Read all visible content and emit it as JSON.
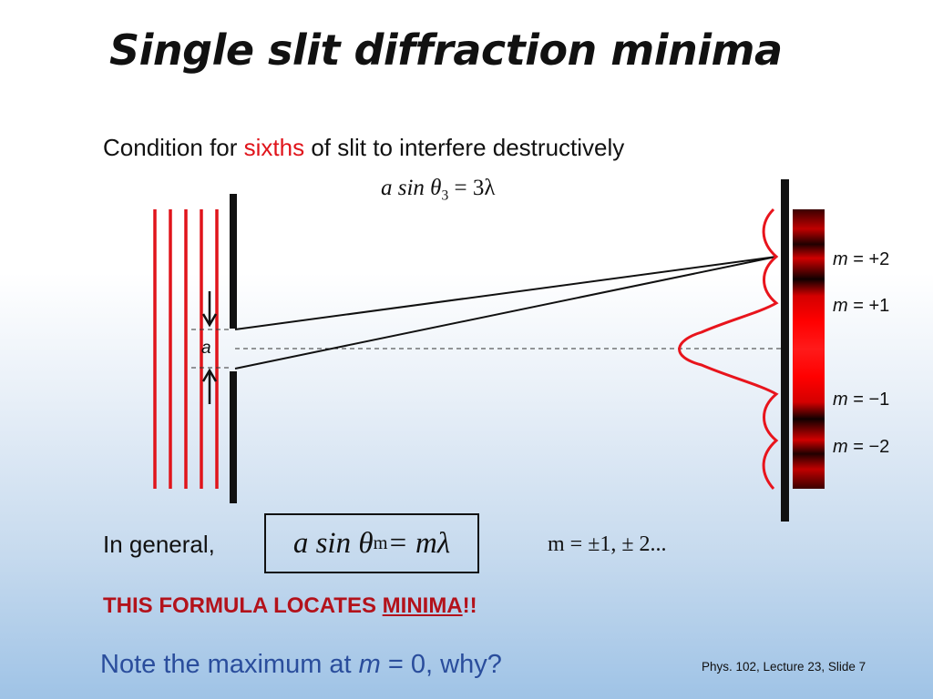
{
  "slide": {
    "title": "Single slit diffraction minima",
    "condition": {
      "prefix": "Condition for ",
      "highlight": "sixths",
      "suffix": " of slit to interfere destructively"
    },
    "formula_top": {
      "lhs": "a sin θ",
      "subscript": "3",
      "rhs": " = 3λ"
    },
    "diagram": {
      "slit_label": "a",
      "screen_labels": [
        {
          "var": "m",
          "text": " = +2"
        },
        {
          "var": "m",
          "text": " = +1"
        },
        {
          "var": "m",
          "text": " = −1"
        },
        {
          "var": "m",
          "text": " = −2"
        }
      ],
      "colors": {
        "wavefronts": "#e0141b",
        "intensity_curve": "#e8141c",
        "barrier": "#111111"
      }
    },
    "general": {
      "label": "In general,",
      "formula_lhs": "a sin θ",
      "formula_subscript": "m",
      "formula_rhs": " = mλ",
      "m_values": "m = ±1, ± 2..."
    },
    "locates": {
      "prefix": "THIS FORMULA LOCATES ",
      "underlined": "MINIMA",
      "suffix": "!!"
    },
    "note": {
      "prefix": "Note the maximum at ",
      "var": "m",
      "suffix": " = 0, why?"
    },
    "footer": "Phys. 102, Lecture 23, Slide 7"
  }
}
